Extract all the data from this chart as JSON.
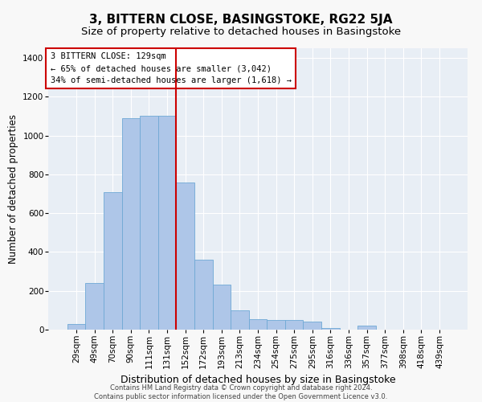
{
  "title": "3, BITTERN CLOSE, BASINGSTOKE, RG22 5JA",
  "subtitle": "Size of property relative to detached houses in Basingstoke",
  "xlabel": "Distribution of detached houses by size in Basingstoke",
  "ylabel": "Number of detached properties",
  "bar_labels": [
    "29sqm",
    "49sqm",
    "70sqm",
    "90sqm",
    "111sqm",
    "131sqm",
    "152sqm",
    "172sqm",
    "193sqm",
    "213sqm",
    "234sqm",
    "254sqm",
    "275sqm",
    "295sqm",
    "316sqm",
    "336sqm",
    "357sqm",
    "377sqm",
    "398sqm",
    "418sqm",
    "439sqm"
  ],
  "bar_heights": [
    30,
    240,
    710,
    1090,
    1100,
    1100,
    760,
    360,
    230,
    100,
    55,
    50,
    50,
    40,
    10,
    0,
    20,
    0,
    0,
    0,
    0
  ],
  "bar_color": "#aec6e8",
  "bar_edge_color": "#6fa8d5",
  "vline_x_index": 5.5,
  "vline_color": "#cc0000",
  "annotation_box_text": "3 BITTERN CLOSE: 129sqm\n← 65% of detached houses are smaller (3,042)\n34% of semi-detached houses are larger (1,618) →",
  "ylim": [
    0,
    1450
  ],
  "yticks": [
    0,
    200,
    400,
    600,
    800,
    1000,
    1200,
    1400
  ],
  "background_color": "#e8eef5",
  "grid_color": "#ffffff",
  "footer_text": "Contains HM Land Registry data © Crown copyright and database right 2024.\nContains public sector information licensed under the Open Government Licence v3.0.",
  "title_fontsize": 11,
  "subtitle_fontsize": 9.5,
  "xlabel_fontsize": 9,
  "ylabel_fontsize": 8.5,
  "tick_fontsize": 7.5,
  "annotation_fontsize": 7.5,
  "footer_fontsize": 6.0
}
